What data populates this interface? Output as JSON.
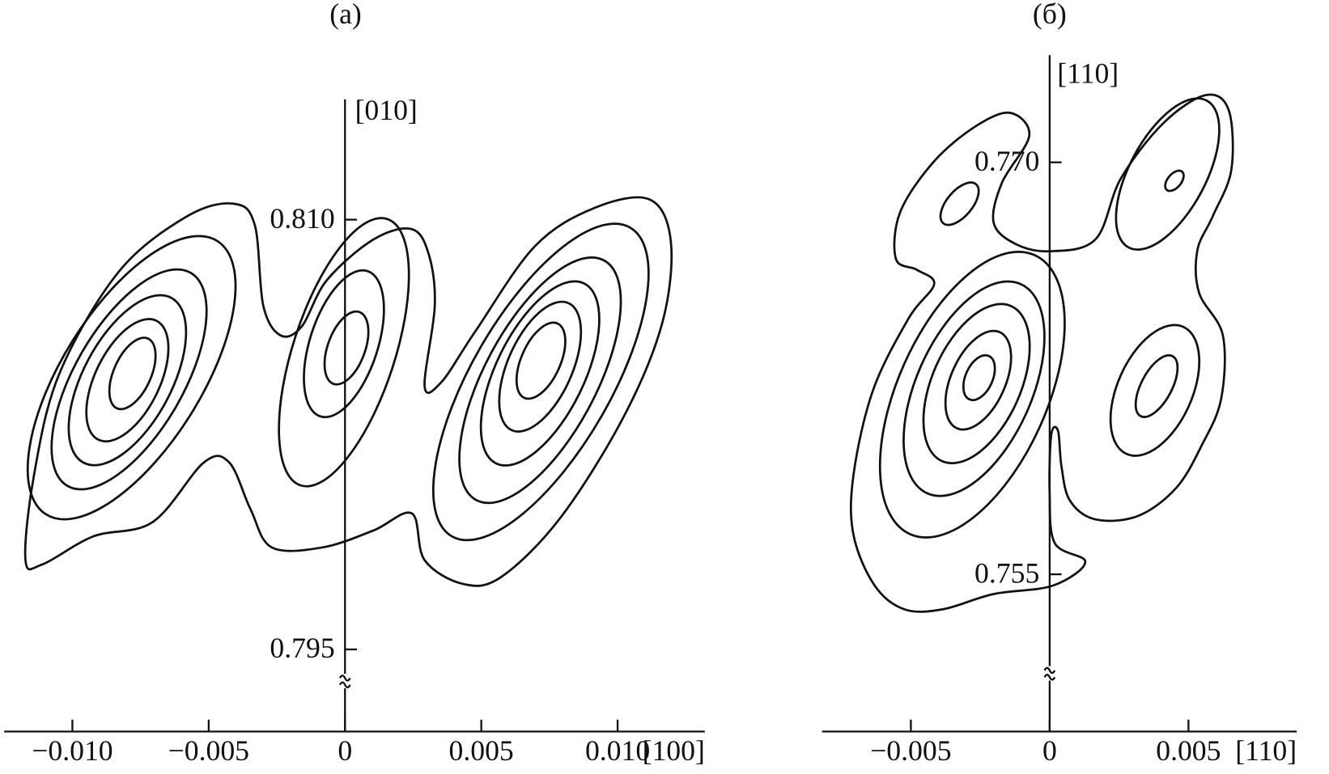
{
  "chart_data": [
    {
      "type": "contour",
      "title": "(a)",
      "x_label": "[100]",
      "y_label": "[010]",
      "xlim": [
        -0.0125,
        0.0132
      ],
      "ylim": [
        0.794,
        0.8142
      ],
      "xticks": [
        {
          "value": -0.01,
          "label": "−0.010"
        },
        {
          "value": -0.005,
          "label": "−0.005"
        },
        0,
        0.005,
        {
          "value": 0.01,
          "label": "0.010"
        }
      ],
      "yticks": [
        0.795,
        {
          "value": 0.81,
          "label": "0.810"
        }
      ]
    },
    {
      "type": "contour",
      "title": "(б)",
      "x_label": "[110]",
      "y_label": "[110]",
      "xlim": [
        -0.0082,
        0.0089
      ],
      "ylim": [
        0.7515,
        0.7739
      ],
      "xticks": [
        {
          "value": -0.005,
          "label": "−0.005"
        },
        0,
        0.005
      ],
      "yticks": [
        0.755,
        {
          "value": 0.77,
          "label": "0.770"
        }
      ]
    }
  ]
}
